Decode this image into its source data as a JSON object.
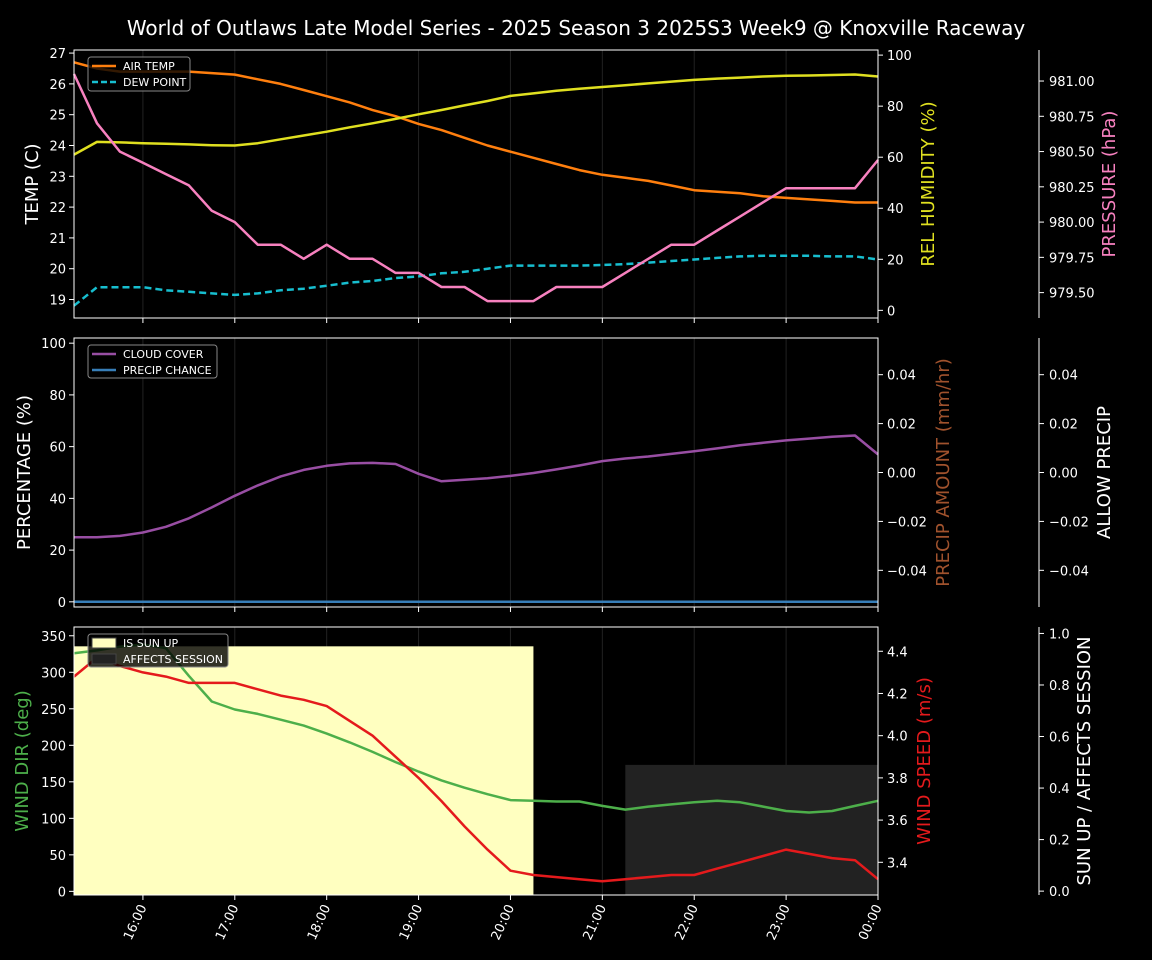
{
  "title": "World of Outlaws Late Model Series - 2025 Season 3 2025S3 Week9 @ Knoxville Raceway",
  "x_tick_labels": [
    "16:00",
    "17:00",
    "18:00",
    "19:00",
    "20:00",
    "21:00",
    "22:00",
    "23:00",
    "00:00"
  ],
  "colors": {
    "air_temp": "#ff7f0e",
    "dew_point": "#17becf",
    "humidity": "#e0e020",
    "pressure": "#f781bf",
    "cloud": "#984ea3",
    "precip_chance": "#377eb8",
    "precip_amount": "#a0522d",
    "wind_dir": "#4daf4a",
    "wind_speed": "#e41a1c",
    "sun_up": "#ffffc0",
    "affects": "#222222"
  },
  "chart_data": [
    {
      "type": "line",
      "panel": "temperature",
      "x_hours": [
        15.25,
        15.5,
        15.75,
        16,
        16.25,
        16.5,
        16.75,
        17,
        17.25,
        17.5,
        17.75,
        18,
        18.25,
        18.5,
        18.75,
        19,
        19.25,
        19.5,
        19.75,
        20,
        20.25,
        20.5,
        20.75,
        21,
        21.25,
        21.5,
        21.75,
        22,
        22.25,
        22.5,
        22.75,
        23,
        23.25,
        23.5,
        23.75,
        24
      ],
      "left_axis": {
        "label": "TEMP (C)",
        "ticks": [
          "19",
          "20",
          "21",
          "22",
          "23",
          "24",
          "25",
          "26",
          "27"
        ],
        "ylim": [
          18.4,
          27.1
        ]
      },
      "right_axis": {
        "label": "REL HUMIDITY (%)",
        "ticks": [
          "0",
          "20",
          "40",
          "60",
          "80",
          "100"
        ],
        "ylim": [
          -3,
          102
        ]
      },
      "far_axis": {
        "label": "PRESSURE (hPa)",
        "ticks": [
          "979.50",
          "979.75",
          "980.00",
          "980.25",
          "980.50",
          "980.75",
          "981.00"
        ],
        "ylim": [
          979.32,
          981.22
        ]
      },
      "legend": {
        "position": "top-left",
        "entries": [
          "AIR TEMP",
          "DEW POINT"
        ]
      },
      "series": [
        {
          "name": "AIR TEMP",
          "axis": "left",
          "style": "solid",
          "values": [
            26.7,
            26.5,
            26.4,
            26.4,
            26.4,
            26.4,
            26.35,
            26.3,
            26.15,
            26.0,
            25.8,
            25.6,
            25.4,
            25.15,
            24.95,
            24.7,
            24.5,
            24.25,
            24.0,
            23.8,
            23.6,
            23.4,
            23.2,
            23.05,
            22.95,
            22.85,
            22.7,
            22.55,
            22.5,
            22.45,
            22.35,
            22.3,
            22.25,
            22.2,
            22.15,
            22.15
          ]
        },
        {
          "name": "DEW POINT",
          "axis": "left",
          "style": "dashed",
          "values": [
            18.8,
            19.4,
            19.4,
            19.4,
            19.3,
            19.25,
            19.2,
            19.15,
            19.2,
            19.3,
            19.35,
            19.45,
            19.55,
            19.6,
            19.7,
            19.75,
            19.85,
            19.9,
            20.0,
            20.1,
            20.1,
            20.1,
            20.1,
            20.12,
            20.15,
            20.2,
            20.25,
            20.3,
            20.35,
            20.4,
            20.42,
            20.42,
            20.42,
            20.4,
            20.4,
            20.3
          ]
        },
        {
          "name": "REL HUMIDITY",
          "axis": "right",
          "style": "solid",
          "values": [
            61,
            66,
            65.8,
            65.5,
            65.3,
            65,
            64.7,
            64.6,
            65.5,
            67,
            68.5,
            70,
            71.7,
            73.3,
            75,
            76.8,
            78.5,
            80.3,
            82,
            84,
            85,
            86,
            86.8,
            87.5,
            88.2,
            88.9,
            89.6,
            90.3,
            90.8,
            91.2,
            91.6,
            91.9,
            92,
            92.2,
            92.4,
            91.6
          ]
        },
        {
          "name": "PRESSURE",
          "axis": "far",
          "style": "solid",
          "values": [
            981.05,
            980.7,
            980.5,
            980.42,
            980.34,
            980.26,
            980.08,
            980.0,
            979.84,
            979.84,
            979.74,
            979.84,
            979.74,
            979.74,
            979.64,
            979.64,
            979.54,
            979.54,
            979.44,
            979.44,
            979.44,
            979.54,
            979.54,
            979.54,
            979.64,
            979.74,
            979.84,
            979.84,
            979.94,
            980.04,
            980.14,
            980.24,
            980.24,
            980.24,
            980.24,
            980.44
          ]
        }
      ]
    },
    {
      "type": "line",
      "panel": "clouds",
      "x_hours": [
        15.25,
        15.5,
        15.75,
        16,
        16.25,
        16.5,
        16.75,
        17,
        17.25,
        17.5,
        17.75,
        18,
        18.25,
        18.5,
        18.75,
        19,
        19.25,
        19.5,
        19.75,
        20,
        20.25,
        20.5,
        20.75,
        21,
        21.25,
        21.5,
        21.75,
        22,
        22.25,
        22.5,
        22.75,
        23,
        23.25,
        23.5,
        23.75,
        24
      ],
      "left_axis": {
        "label": "PERCENTAGE (%)",
        "ticks": [
          "0",
          "20",
          "40",
          "60",
          "80",
          "100"
        ],
        "ylim": [
          -2,
          102
        ]
      },
      "right_axis": {
        "label": "PRECIP AMOUNT (mm/hr)",
        "ticks": [
          "−0.04",
          "−0.02",
          "0.00",
          "0.02",
          "0.04"
        ],
        "ylim": [
          -0.055,
          0.055
        ]
      },
      "far_axis": {
        "label": "ALLOW PRECIP",
        "ticks": [
          "−0.04",
          "−0.02",
          "0.00",
          "0.02",
          "0.04"
        ],
        "ylim": [
          -0.055,
          0.055
        ]
      },
      "legend": {
        "position": "top-left",
        "entries": [
          "CLOUD COVER",
          "PRECIP CHANCE"
        ]
      },
      "series": [
        {
          "name": "CLOUD COVER",
          "axis": "left",
          "values": [
            25,
            25,
            25.5,
            26.8,
            29,
            32.3,
            36.5,
            41,
            45,
            48.5,
            51,
            52.6,
            53.5,
            53.7,
            53.3,
            49.5,
            46.6,
            47.2,
            47.8,
            48.7,
            49.8,
            51.2,
            52.7,
            54.4,
            55.4,
            56.2,
            57.2,
            58.2,
            59.3,
            60.5,
            61.5,
            62.4,
            63.1,
            63.8,
            64.3,
            57
          ]
        },
        {
          "name": "PRECIP CHANCE",
          "axis": "left",
          "values": [
            0,
            0,
            0,
            0,
            0,
            0,
            0,
            0,
            0,
            0,
            0,
            0,
            0,
            0,
            0,
            0,
            0,
            0,
            0,
            0,
            0,
            0,
            0,
            0,
            0,
            0,
            0,
            0,
            0,
            0,
            0,
            0,
            0,
            0,
            0,
            0
          ]
        }
      ]
    },
    {
      "type": "line",
      "panel": "wind",
      "x_hours": [
        15.25,
        15.5,
        15.75,
        16,
        16.25,
        16.5,
        16.75,
        17,
        17.25,
        17.5,
        17.75,
        18,
        18.25,
        18.5,
        18.75,
        19,
        19.25,
        19.5,
        19.75,
        20,
        20.25,
        20.5,
        20.75,
        21,
        21.25,
        21.5,
        21.75,
        22,
        22.25,
        22.5,
        22.75,
        23,
        23.25,
        23.5,
        23.75,
        24
      ],
      "left_axis": {
        "label": "WIND DIR (deg)",
        "ticks": [
          "0",
          "50",
          "100",
          "150",
          "200",
          "250",
          "300",
          "350"
        ],
        "ylim": [
          -5,
          362
        ]
      },
      "right_axis": {
        "label": "WIND SPEED (m/s)",
        "ticks": [
          "3.4",
          "3.6",
          "3.8",
          "4.0",
          "4.2",
          "4.4"
        ],
        "ylim": [
          3.245,
          4.515
        ]
      },
      "far_axis": {
        "label": "SUN UP / AFFECTS SESSION",
        "ticks": [
          "0.0",
          "0.2",
          "0.4",
          "0.6",
          "0.8",
          "1.0"
        ],
        "ylim": [
          -0.015,
          1.025
        ]
      },
      "legend": {
        "position": "top-left",
        "entries": [
          "IS SUN UP",
          "AFFECTS SESSION"
        ]
      },
      "bands": [
        {
          "name": "IS SUN UP",
          "x_start": 15.25,
          "x_end": 20.25,
          "y_top": 0.95
        },
        {
          "name": "AFFECTS SESSION",
          "x_start": 21.25,
          "x_end": 24.0,
          "y_top": 0.49
        }
      ],
      "series": [
        {
          "name": "WIND DIR",
          "axis": "left",
          "values": [
            326,
            330,
            335,
            338,
            333,
            295,
            260,
            249,
            243,
            235,
            227,
            216,
            204,
            191,
            177,
            164,
            152,
            142,
            133,
            125,
            124,
            123,
            123,
            117,
            112,
            116,
            119,
            122,
            124,
            122,
            116,
            110,
            108,
            110,
            117,
            124
          ]
        },
        {
          "name": "WIND SPEED",
          "axis": "right",
          "values": [
            4.28,
            4.37,
            4.33,
            4.3,
            4.28,
            4.25,
            4.25,
            4.25,
            4.22,
            4.19,
            4.17,
            4.14,
            4.07,
            4.0,
            3.9,
            3.8,
            3.69,
            3.57,
            3.46,
            3.36,
            3.34,
            3.33,
            3.32,
            3.31,
            3.32,
            3.33,
            3.34,
            3.34,
            3.37,
            3.4,
            3.43,
            3.46,
            3.44,
            3.42,
            3.41,
            3.32
          ]
        }
      ]
    }
  ]
}
